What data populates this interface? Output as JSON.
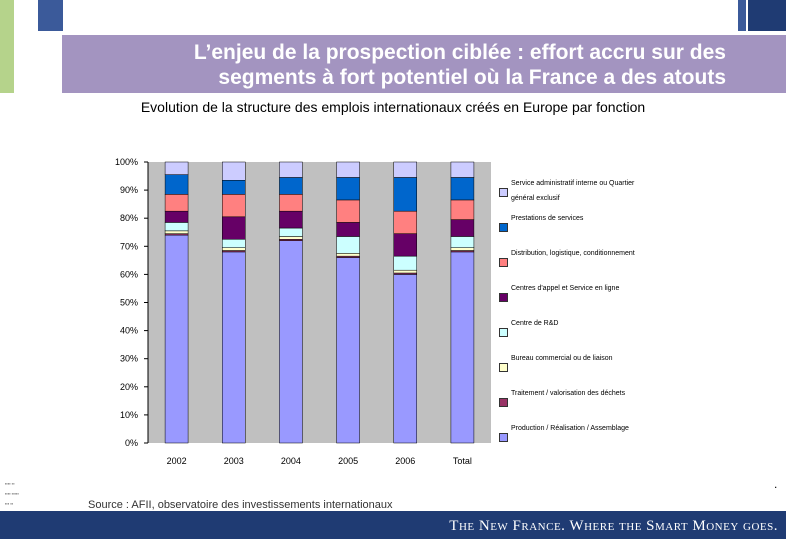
{
  "header": {
    "title_line1": "L’enjeu de la prospection ciblée : effort accru sur des",
    "title_line2": "segments à fort potentiel où la France a des atouts"
  },
  "subtitle": "Evolution de la structure des emplois internationaux créés en Europe par fonction",
  "chart_data": {
    "type": "bar",
    "stacked": true,
    "percent": true,
    "categories": [
      "2002",
      "2003",
      "2004",
      "2005",
      "2006",
      "Total"
    ],
    "y_ticks": [
      "0%",
      "10%",
      "20%",
      "30%",
      "40%",
      "50%",
      "60%",
      "70%",
      "80%",
      "90%",
      "100%"
    ],
    "ylim": [
      0,
      100
    ],
    "series": [
      {
        "name": "Production / Réalisation / Assemblage",
        "color": "#9999ff",
        "values": [
          74,
          68,
          72,
          66,
          60,
          68
        ]
      },
      {
        "name": "Traitement / valorisation des déchets",
        "color": "#993366",
        "values": [
          0.5,
          0.5,
          0.5,
          0.5,
          0.5,
          0.5
        ]
      },
      {
        "name": "Bureau commercial ou de liaison",
        "color": "#ffffcc",
        "values": [
          1,
          1,
          1,
          1,
          1,
          1
        ]
      },
      {
        "name": "Centre de R&D",
        "color": "#ccffff",
        "values": [
          3,
          3,
          3,
          6,
          5,
          4
        ]
      },
      {
        "name": "Centres d'appel et Service en ligne",
        "color": "#660066",
        "values": [
          4,
          8,
          6,
          5,
          8,
          6
        ]
      },
      {
        "name": "Distribution, logistique, conditionnement",
        "color": "#ff8080",
        "values": [
          6,
          8,
          6,
          8,
          8,
          7
        ]
      },
      {
        "name": "Prestations de services",
        "color": "#0066cc",
        "values": [
          7,
          5,
          6,
          8,
          12,
          8
        ]
      },
      {
        "name": "Service administratif interne ou Quartier général exclusif",
        "color": "#ccccff",
        "values": [
          4.5,
          6.5,
          5.5,
          5.5,
          5.5,
          5.5
        ]
      }
    ]
  },
  "legend": {
    "items": [
      {
        "label": "Service administratif interne ou Quartier général exclusif",
        "color": "#ccccff"
      },
      {
        "label": "Prestations de services",
        "color": "#0066cc"
      },
      {
        "label": "Distribution, logistique, conditionnement",
        "color": "#ff8080"
      },
      {
        "label": "Centres d'appel et Service en ligne",
        "color": "#660066"
      },
      {
        "label": "Centre de R&D",
        "color": "#ccffff"
      },
      {
        "label": "Bureau commercial ou de liaison",
        "color": "#ffffcc"
      },
      {
        "label": "Traitement / valorisation des déchets",
        "color": "#993366"
      },
      {
        "label": "Production / Réalisation / Assemblage",
        "color": "#9999ff"
      }
    ]
  },
  "source": "Source : AFII, observatoire des investissements internationaux",
  "footer": {
    "slogan": "The New France. Where the Smart Money goes."
  },
  "colors": {
    "title_band": "#a394c0",
    "footer_band": "#1f3b73",
    "plot_bg": "#c0c0c0",
    "accent_green": "#b5d38b"
  }
}
